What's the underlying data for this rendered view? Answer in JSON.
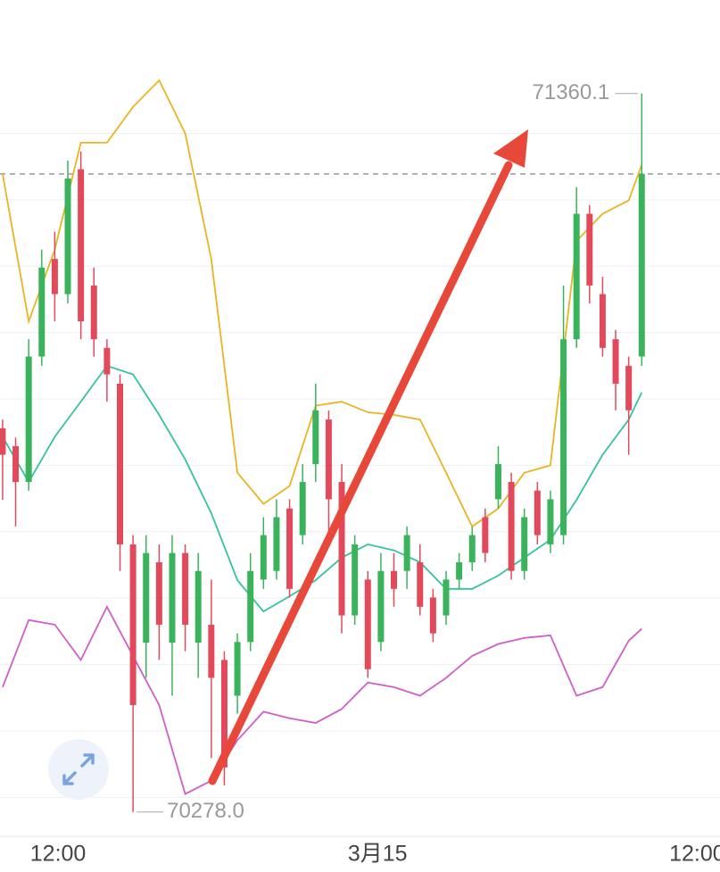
{
  "chart_data": {
    "type": "candlestick",
    "up_color": "#3bb35c",
    "down_color": "#e24a5c",
    "xlim": [
      -0.2,
      55.0
    ],
    "xticks": [
      {
        "value": 4.25,
        "label": "12:00"
      },
      {
        "value": 28.75,
        "label": "3月15"
      },
      {
        "value": 53.25,
        "label": "12:00"
      }
    ],
    "ylim": [
      70244,
      71501
    ],
    "yticks": [
      70300,
      70400,
      70500,
      70600,
      70700,
      70800,
      70900,
      71000,
      71100,
      71200,
      71300
    ],
    "grid": true,
    "open": [
      70856,
      70829,
      70775,
      70964,
      71111,
      71058,
      71246,
      71071,
      70977,
      70923,
      70681,
      70533,
      70654,
      70533,
      70668,
      70533,
      70560,
      70507,
      70453,
      70534,
      70628,
      70641,
      70735,
      70695,
      70802,
      70869,
      70775,
      70574,
      70628,
      70534,
      70641,
      70641,
      70654,
      70601,
      70574,
      70628,
      70654,
      70722,
      70749,
      70775,
      70641,
      70762,
      70681,
      70695,
      70990,
      71179,
      71058,
      70990,
      70950,
      70964
    ],
    "high": [
      70869,
      70842,
      70990,
      71125,
      71152,
      71259,
      71273,
      71098,
      70990,
      70937,
      70695,
      70695,
      70681,
      70695,
      70681,
      70668,
      70628,
      70520,
      70547,
      70668,
      70722,
      70749,
      70749,
      70802,
      70923,
      70883,
      70802,
      70695,
      70641,
      70668,
      70668,
      70708,
      70681,
      70614,
      70641,
      70668,
      70708,
      70735,
      70829,
      70789,
      70735,
      70775,
      70762,
      71071,
      71219,
      71192,
      71084,
      71004,
      70964,
      71360.1
    ],
    "low": [
      70748,
      70708,
      70762,
      70950,
      71017,
      71044,
      70990,
      70964,
      70896,
      70641,
      70278.0,
      70480,
      70507,
      70453,
      70520,
      70480,
      70359,
      70318,
      70426,
      70520,
      70614,
      70628,
      70601,
      70681,
      70775,
      70695,
      70547,
      70560,
      70480,
      70520,
      70587,
      70614,
      70574,
      70534,
      70560,
      70614,
      70641,
      70654,
      70735,
      70628,
      70628,
      70681,
      70668,
      70681,
      70977,
      71044,
      70964,
      70883,
      70816,
      70950
    ],
    "close": [
      70816,
      70775,
      70964,
      71098,
      71058,
      71232,
      71017,
      70990,
      70937,
      70681,
      70439,
      70668,
      70560,
      70668,
      70560,
      70641,
      70480,
      70345,
      70534,
      70641,
      70695,
      70722,
      70614,
      70775,
      70883,
      70749,
      70574,
      70681,
      70493,
      70641,
      70614,
      70695,
      70587,
      70547,
      70628,
      70654,
      70695,
      70668,
      70802,
      70641,
      70722,
      70695,
      70749,
      70990,
      71179,
      71071,
      70977,
      70923,
      70883,
      71239
    ],
    "last_price": 71239,
    "high_label": "71360.1",
    "low_label": "70278.0",
    "lines": [
      {
        "color": "#e9b422",
        "x": [
          0,
          2,
          4,
          6,
          8,
          10,
          12,
          14,
          16,
          18,
          20,
          22,
          24,
          26,
          28,
          30,
          32,
          34,
          36,
          38,
          40,
          42,
          44,
          46,
          48,
          49
        ],
        "values": [
          71239,
          71017,
          71125,
          71286,
          71286,
          71340,
          71380,
          71300,
          71111,
          70789,
          70742,
          70769,
          70890,
          70896,
          70880,
          70876,
          70869,
          70789,
          70708,
          70735,
          70789,
          70800,
          71138,
          71179,
          71199,
          71253
        ]
      },
      {
        "color": "#35c2a0",
        "x": [
          0,
          2,
          4,
          6,
          8,
          10,
          12,
          14,
          16,
          18,
          20,
          22,
          24,
          26,
          28,
          30,
          32,
          34,
          36,
          38,
          40,
          42,
          44,
          46,
          48,
          49
        ],
        "values": [
          70843,
          70775,
          70843,
          70896,
          70950,
          70937,
          70876,
          70809,
          70728,
          70627,
          70580,
          70603,
          70627,
          70661,
          70681,
          70672,
          70654,
          70614,
          70614,
          70634,
          70661,
          70688,
          70748,
          70816,
          70869,
          70910
        ]
      },
      {
        "color": "#cf5fc6",
        "x": [
          0,
          2,
          4,
          6,
          8,
          10,
          12,
          14,
          16,
          18,
          20,
          22,
          24,
          26,
          28,
          30,
          32,
          34,
          36,
          38,
          40,
          42,
          44,
          46,
          48,
          49
        ],
        "values": [
          70466,
          70567,
          70560,
          70507,
          70587,
          70513,
          70439,
          70305,
          70325,
          70386,
          70429,
          70419,
          70412,
          70433,
          70473,
          70466,
          70453,
          70480,
          70513,
          70531,
          70540,
          70544,
          70453,
          70466,
          70536,
          70554
        ]
      }
    ]
  }
}
